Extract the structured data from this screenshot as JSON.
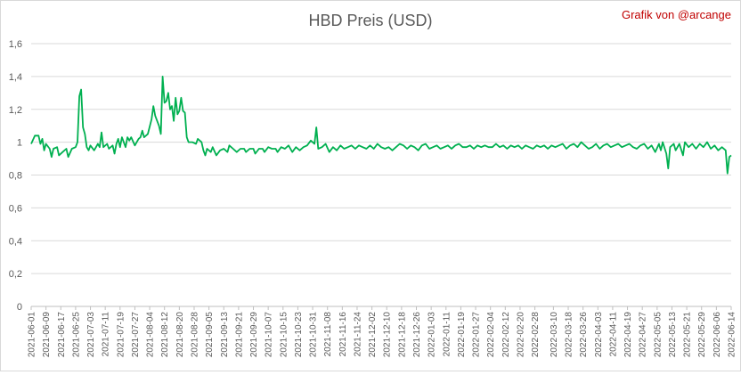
{
  "chart_data": {
    "type": "line",
    "title": "HBD Preis (USD)",
    "credit": "Grafik von @arcange",
    "xlabel": "",
    "ylabel": "",
    "ylim": [
      0,
      1.6
    ],
    "ytick_values": [
      0,
      0.2,
      0.4,
      0.6,
      0.8,
      1,
      1.2,
      1.4,
      1.6
    ],
    "ytick_labels": [
      "0",
      "0,2",
      "0,4",
      "0,6",
      "0,8",
      "1",
      "1,2",
      "1,4",
      "1,6"
    ],
    "grid": true,
    "legend": "none",
    "x_tick_labels": [
      "2021-06-01",
      "2021-06-09",
      "2021-06-17",
      "2021-06-25",
      "2021-07-03",
      "2021-07-11",
      "2021-07-19",
      "2021-07-27",
      "2021-08-04",
      "2021-08-12",
      "2021-08-20",
      "2021-08-28",
      "2021-09-05",
      "2021-09-13",
      "2021-09-21",
      "2021-09-29",
      "2021-10-07",
      "2021-10-15",
      "2021-10-23",
      "2021-10-31",
      "2021-11-08",
      "2021-11-16",
      "2021-11-24",
      "2021-12-02",
      "2021-12-10",
      "2021-12-18",
      "2021-12-26",
      "2022-01-03",
      "2022-01-11",
      "2022-01-19",
      "2022-01-27",
      "2022-02-04",
      "2022-02-12",
      "2022-02-20",
      "2022-02-28",
      "2022-03-10",
      "2022-03-18",
      "2022-03-26",
      "2022-04-03",
      "2022-04-11",
      "2022-04-19",
      "2022-04-27",
      "2022-05-05",
      "2022-05-13",
      "2022-05-21",
      "2022-05-29",
      "2022-06-06",
      "2022-06-14"
    ],
    "series": [
      {
        "color": "#00b050",
        "points": [
          [
            "2021-06-01",
            0.99
          ],
          [
            "2021-06-03",
            1.04
          ],
          [
            "2021-06-05",
            1.04
          ],
          [
            "2021-06-06",
            0.99
          ],
          [
            "2021-06-07",
            1.02
          ],
          [
            "2021-06-08",
            0.95
          ],
          [
            "2021-06-09",
            0.99
          ],
          [
            "2021-06-11",
            0.96
          ],
          [
            "2021-06-12",
            0.91
          ],
          [
            "2021-06-13",
            0.96
          ],
          [
            "2021-06-15",
            0.97
          ],
          [
            "2021-06-16",
            0.92
          ],
          [
            "2021-06-18",
            0.94
          ],
          [
            "2021-06-20",
            0.96
          ],
          [
            "2021-06-21",
            0.91
          ],
          [
            "2021-06-23",
            0.96
          ],
          [
            "2021-06-25",
            0.97
          ],
          [
            "2021-06-26",
            1.0
          ],
          [
            "2021-06-27",
            1.28
          ],
          [
            "2021-06-28",
            1.32
          ],
          [
            "2021-06-29",
            1.09
          ],
          [
            "2021-06-30",
            1.05
          ],
          [
            "2021-07-01",
            0.97
          ],
          [
            "2021-07-02",
            0.95
          ],
          [
            "2021-07-03",
            0.98
          ],
          [
            "2021-07-05",
            0.95
          ],
          [
            "2021-07-06",
            0.97
          ],
          [
            "2021-07-07",
            0.99
          ],
          [
            "2021-07-08",
            0.97
          ],
          [
            "2021-07-09",
            1.06
          ],
          [
            "2021-07-10",
            0.97
          ],
          [
            "2021-07-12",
            0.99
          ],
          [
            "2021-07-13",
            0.96
          ],
          [
            "2021-07-15",
            0.98
          ],
          [
            "2021-07-16",
            0.93
          ],
          [
            "2021-07-17",
            0.99
          ],
          [
            "2021-07-18",
            1.02
          ],
          [
            "2021-07-19",
            0.97
          ],
          [
            "2021-07-20",
            1.03
          ],
          [
            "2021-07-22",
            0.97
          ],
          [
            "2021-07-23",
            1.03
          ],
          [
            "2021-07-24",
            1.01
          ],
          [
            "2021-07-25",
            1.03
          ],
          [
            "2021-07-27",
            0.98
          ],
          [
            "2021-07-29",
            1.02
          ],
          [
            "2021-07-30",
            1.03
          ],
          [
            "2021-07-31",
            1.07
          ],
          [
            "2021-08-01",
            1.03
          ],
          [
            "2021-08-03",
            1.05
          ],
          [
            "2021-08-05",
            1.14
          ],
          [
            "2021-08-06",
            1.22
          ],
          [
            "2021-08-07",
            1.16
          ],
          [
            "2021-08-09",
            1.1
          ],
          [
            "2021-08-10",
            1.05
          ],
          [
            "2021-08-11",
            1.4
          ],
          [
            "2021-08-12",
            1.24
          ],
          [
            "2021-08-13",
            1.25
          ],
          [
            "2021-08-14",
            1.3
          ],
          [
            "2021-08-15",
            1.2
          ],
          [
            "2021-08-16",
            1.22
          ],
          [
            "2021-08-17",
            1.13
          ],
          [
            "2021-08-18",
            1.27
          ],
          [
            "2021-08-19",
            1.17
          ],
          [
            "2021-08-20",
            1.19
          ],
          [
            "2021-08-21",
            1.27
          ],
          [
            "2021-08-22",
            1.19
          ],
          [
            "2021-08-23",
            1.18
          ],
          [
            "2021-08-24",
            1.03
          ],
          [
            "2021-08-25",
            1.0
          ],
          [
            "2021-08-27",
            1.0
          ],
          [
            "2021-08-29",
            0.99
          ],
          [
            "2021-08-30",
            1.02
          ],
          [
            "2021-09-01",
            1.0
          ],
          [
            "2021-09-02",
            0.95
          ],
          [
            "2021-09-03",
            0.92
          ],
          [
            "2021-09-04",
            0.96
          ],
          [
            "2021-09-06",
            0.94
          ],
          [
            "2021-09-07",
            0.97
          ],
          [
            "2021-09-09",
            0.92
          ],
          [
            "2021-09-11",
            0.95
          ],
          [
            "2021-09-13",
            0.96
          ],
          [
            "2021-09-15",
            0.94
          ],
          [
            "2021-09-16",
            0.98
          ],
          [
            "2021-09-18",
            0.96
          ],
          [
            "2021-09-20",
            0.94
          ],
          [
            "2021-09-22",
            0.96
          ],
          [
            "2021-09-24",
            0.96
          ],
          [
            "2021-09-25",
            0.94
          ],
          [
            "2021-09-27",
            0.96
          ],
          [
            "2021-09-29",
            0.96
          ],
          [
            "2021-09-30",
            0.93
          ],
          [
            "2021-10-02",
            0.96
          ],
          [
            "2021-10-04",
            0.96
          ],
          [
            "2021-10-05",
            0.94
          ],
          [
            "2021-10-07",
            0.97
          ],
          [
            "2021-10-09",
            0.96
          ],
          [
            "2021-10-11",
            0.96
          ],
          [
            "2021-10-12",
            0.94
          ],
          [
            "2021-10-14",
            0.97
          ],
          [
            "2021-10-16",
            0.96
          ],
          [
            "2021-10-18",
            0.98
          ],
          [
            "2021-10-20",
            0.94
          ],
          [
            "2021-10-22",
            0.97
          ],
          [
            "2021-10-24",
            0.95
          ],
          [
            "2021-10-26",
            0.97
          ],
          [
            "2021-10-28",
            0.98
          ],
          [
            "2021-10-30",
            1.01
          ],
          [
            "2021-11-01",
            0.99
          ],
          [
            "2021-11-02",
            1.09
          ],
          [
            "2021-11-03",
            0.96
          ],
          [
            "2021-11-05",
            0.97
          ],
          [
            "2021-11-07",
            0.99
          ],
          [
            "2021-11-09",
            0.94
          ],
          [
            "2021-11-11",
            0.97
          ],
          [
            "2021-11-13",
            0.95
          ],
          [
            "2021-11-15",
            0.98
          ],
          [
            "2021-11-17",
            0.96
          ],
          [
            "2021-11-19",
            0.97
          ],
          [
            "2021-11-21",
            0.98
          ],
          [
            "2021-11-23",
            0.96
          ],
          [
            "2021-11-25",
            0.98
          ],
          [
            "2021-11-27",
            0.97
          ],
          [
            "2021-11-29",
            0.96
          ],
          [
            "2021-12-01",
            0.98
          ],
          [
            "2021-12-03",
            0.96
          ],
          [
            "2021-12-05",
            0.99
          ],
          [
            "2021-12-07",
            0.97
          ],
          [
            "2021-12-09",
            0.96
          ],
          [
            "2021-12-11",
            0.97
          ],
          [
            "2021-12-13",
            0.95
          ],
          [
            "2021-12-15",
            0.97
          ],
          [
            "2021-12-17",
            0.99
          ],
          [
            "2021-12-19",
            0.98
          ],
          [
            "2021-12-21",
            0.96
          ],
          [
            "2021-12-23",
            0.98
          ],
          [
            "2021-12-25",
            0.97
          ],
          [
            "2021-12-27",
            0.95
          ],
          [
            "2021-12-29",
            0.98
          ],
          [
            "2021-12-31",
            0.99
          ],
          [
            "2022-01-02",
            0.96
          ],
          [
            "2022-01-04",
            0.97
          ],
          [
            "2022-01-06",
            0.98
          ],
          [
            "2022-01-08",
            0.96
          ],
          [
            "2022-01-10",
            0.97
          ],
          [
            "2022-01-12",
            0.98
          ],
          [
            "2022-01-14",
            0.96
          ],
          [
            "2022-01-16",
            0.98
          ],
          [
            "2022-01-18",
            0.99
          ],
          [
            "2022-01-20",
            0.97
          ],
          [
            "2022-01-22",
            0.97
          ],
          [
            "2022-01-24",
            0.98
          ],
          [
            "2022-01-26",
            0.96
          ],
          [
            "2022-01-28",
            0.98
          ],
          [
            "2022-01-30",
            0.97
          ],
          [
            "2022-02-01",
            0.98
          ],
          [
            "2022-02-03",
            0.97
          ],
          [
            "2022-02-05",
            0.97
          ],
          [
            "2022-02-07",
            0.99
          ],
          [
            "2022-02-09",
            0.97
          ],
          [
            "2022-02-11",
            0.98
          ],
          [
            "2022-02-13",
            0.96
          ],
          [
            "2022-02-15",
            0.98
          ],
          [
            "2022-02-17",
            0.97
          ],
          [
            "2022-02-19",
            0.98
          ],
          [
            "2022-02-21",
            0.96
          ],
          [
            "2022-02-23",
            0.98
          ],
          [
            "2022-02-25",
            0.97
          ],
          [
            "2022-02-27",
            0.96
          ],
          [
            "2022-03-01",
            0.98
          ],
          [
            "2022-03-03",
            0.97
          ],
          [
            "2022-03-05",
            0.98
          ],
          [
            "2022-03-07",
            0.96
          ],
          [
            "2022-03-09",
            0.98
          ],
          [
            "2022-03-11",
            0.97
          ],
          [
            "2022-03-13",
            0.98
          ],
          [
            "2022-03-15",
            0.99
          ],
          [
            "2022-03-17",
            0.96
          ],
          [
            "2022-03-19",
            0.98
          ],
          [
            "2022-03-21",
            0.99
          ],
          [
            "2022-03-23",
            0.97
          ],
          [
            "2022-03-25",
            1.0
          ],
          [
            "2022-03-27",
            0.98
          ],
          [
            "2022-03-29",
            0.96
          ],
          [
            "2022-03-31",
            0.97
          ],
          [
            "2022-04-02",
            0.99
          ],
          [
            "2022-04-04",
            0.96
          ],
          [
            "2022-04-06",
            0.98
          ],
          [
            "2022-04-08",
            0.99
          ],
          [
            "2022-04-10",
            0.97
          ],
          [
            "2022-04-12",
            0.98
          ],
          [
            "2022-04-14",
            0.99
          ],
          [
            "2022-04-16",
            0.97
          ],
          [
            "2022-04-18",
            0.98
          ],
          [
            "2022-04-20",
            0.99
          ],
          [
            "2022-04-22",
            0.97
          ],
          [
            "2022-04-24",
            0.96
          ],
          [
            "2022-04-26",
            0.98
          ],
          [
            "2022-04-28",
            0.99
          ],
          [
            "2022-04-30",
            0.96
          ],
          [
            "2022-05-02",
            0.98
          ],
          [
            "2022-05-04",
            0.94
          ],
          [
            "2022-05-06",
            0.99
          ],
          [
            "2022-05-07",
            0.95
          ],
          [
            "2022-05-08",
            1.0
          ],
          [
            "2022-05-10",
            0.93
          ],
          [
            "2022-05-11",
            0.84
          ],
          [
            "2022-05-12",
            0.97
          ],
          [
            "2022-05-14",
            0.99
          ],
          [
            "2022-05-15",
            0.95
          ],
          [
            "2022-05-17",
            0.99
          ],
          [
            "2022-05-19",
            0.92
          ],
          [
            "2022-05-20",
            1.0
          ],
          [
            "2022-05-22",
            0.97
          ],
          [
            "2022-05-24",
            0.99
          ],
          [
            "2022-05-26",
            0.96
          ],
          [
            "2022-05-28",
            0.99
          ],
          [
            "2022-05-30",
            0.97
          ],
          [
            "2022-06-01",
            1.0
          ],
          [
            "2022-06-03",
            0.96
          ],
          [
            "2022-06-05",
            0.98
          ],
          [
            "2022-06-07",
            0.95
          ],
          [
            "2022-06-09",
            0.97
          ],
          [
            "2022-06-11",
            0.95
          ],
          [
            "2022-06-12",
            0.81
          ],
          [
            "2022-06-13",
            0.91
          ],
          [
            "2022-06-14",
            0.92
          ]
        ]
      }
    ]
  }
}
